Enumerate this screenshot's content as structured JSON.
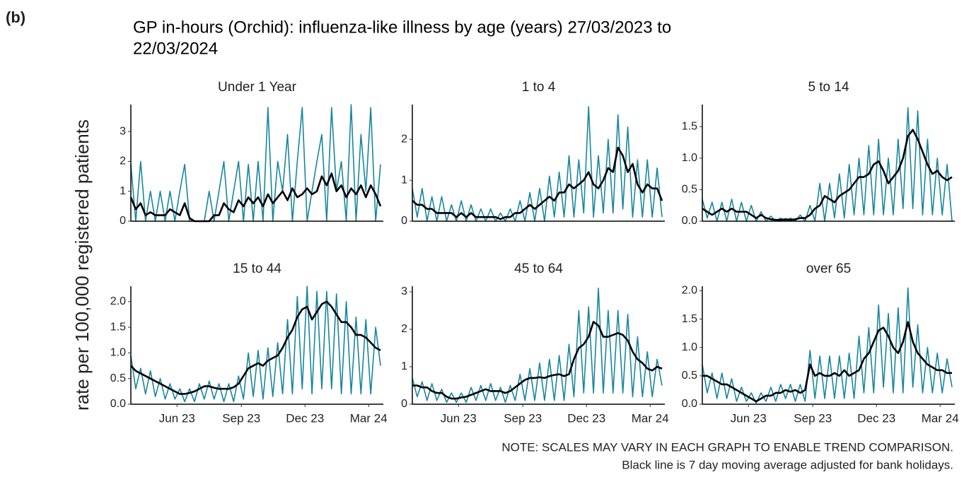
{
  "label": "(b)",
  "title": [
    "GP in-hours (Orchid): influenza-like illness by age (years) 27/03/2023 to",
    "22/03/2024"
  ],
  "y_label": "rate per 100,000 registered patients",
  "notes": [
    "NOTE: SCALES MAY VARY IN EACH GRAPH TO ENABLE TREND COMPARISON.",
    "Black line is 7 day moving average adjusted for bank holidays."
  ],
  "chart_data": [
    {
      "type": "line",
      "title": "Under 1 Year",
      "xlim": [
        0,
        361
      ],
      "ylim": [
        0,
        3.9
      ],
      "yticks": [
        0,
        1,
        2,
        3
      ],
      "x": [
        0,
        7,
        14,
        21,
        28,
        35,
        42,
        49,
        56,
        63,
        70,
        77,
        84,
        91,
        98,
        105,
        112,
        119,
        126,
        133,
        140,
        147,
        154,
        161,
        168,
        175,
        182,
        189,
        196,
        203,
        210,
        217,
        224,
        231,
        238,
        245,
        252,
        259,
        266,
        273,
        280,
        287,
        294,
        301,
        308,
        315,
        322,
        329,
        336,
        343,
        350,
        357
      ],
      "series": [
        {
          "color": "#17869e",
          "values": [
            1.9,
            0,
            2.0,
            0,
            1.0,
            0,
            1.0,
            0,
            1.0,
            0,
            1.0,
            1.9,
            0,
            0,
            0,
            0,
            1.0,
            0,
            1.0,
            2.0,
            0,
            1.0,
            2.0,
            0,
            1.9,
            0,
            2.0,
            0,
            3.8,
            0,
            2.0,
            1.0,
            2.9,
            0,
            2.0,
            3.8,
            0,
            1.0,
            2.0,
            2.9,
            0,
            3.8,
            1.0,
            2.0,
            0,
            3.9,
            0,
            2.9,
            1.0,
            3.8,
            0,
            1.9
          ]
        },
        {
          "color": "#000000",
          "values": [
            0.8,
            0.4,
            0.6,
            0.2,
            0.3,
            0.2,
            0.2,
            0.2,
            0.4,
            0.3,
            0.2,
            0.6,
            0.1,
            0,
            0,
            0,
            0,
            0.2,
            0.2,
            0.6,
            0.4,
            0.3,
            0.7,
            0.5,
            0.8,
            0.6,
            0.8,
            0.5,
            0.9,
            0.6,
            0.8,
            1.0,
            0.7,
            1.1,
            0.8,
            0.9,
            1.1,
            0.9,
            1.0,
            1.5,
            1.2,
            1.6,
            1.0,
            1.2,
            0.8,
            1.1,
            0.9,
            1.2,
            0.8,
            1.2,
            0.9,
            0.5
          ]
        }
      ]
    },
    {
      "type": "line",
      "title": "1 to 4",
      "xlim": [
        0,
        361
      ],
      "ylim": [
        0,
        2.85
      ],
      "yticks": [
        0,
        1,
        2
      ],
      "x": [
        0,
        7,
        14,
        21,
        28,
        35,
        42,
        49,
        56,
        63,
        70,
        77,
        84,
        91,
        98,
        105,
        112,
        119,
        126,
        133,
        140,
        147,
        154,
        161,
        168,
        175,
        182,
        189,
        196,
        203,
        210,
        217,
        224,
        231,
        238,
        245,
        252,
        259,
        266,
        273,
        280,
        287,
        294,
        301,
        308,
        315,
        322,
        329,
        336,
        343,
        350,
        357
      ],
      "series": [
        {
          "color": "#17869e",
          "values": [
            0.8,
            0.1,
            0.8,
            0,
            0.6,
            0,
            0.6,
            0,
            0.4,
            0,
            0.5,
            0,
            0.4,
            0,
            0.3,
            0,
            0.3,
            0,
            0.2,
            0,
            0.3,
            0,
            0.5,
            0,
            0.7,
            0,
            0.8,
            0,
            1.1,
            0.1,
            1.2,
            0.1,
            1.6,
            0.1,
            1.5,
            0.2,
            2.8,
            0.1,
            1.6,
            0.2,
            2.0,
            0.2,
            2.6,
            0.3,
            2.3,
            0.1,
            1.5,
            0.1,
            1.5,
            0.1,
            1.3,
            0.1
          ]
        },
        {
          "color": "#000000",
          "values": [
            0.5,
            0.4,
            0.4,
            0.3,
            0.3,
            0.2,
            0.2,
            0.2,
            0.2,
            0.1,
            0.2,
            0.1,
            0.2,
            0.1,
            0.1,
            0.1,
            0.1,
            0.1,
            0.05,
            0.1,
            0.1,
            0.2,
            0.2,
            0.3,
            0.4,
            0.3,
            0.4,
            0.5,
            0.6,
            0.5,
            0.7,
            0.7,
            0.9,
            0.8,
            0.9,
            1.0,
            1.2,
            0.9,
            0.8,
            1.0,
            1.3,
            1.2,
            1.8,
            1.6,
            1.2,
            1.4,
            0.9,
            0.7,
            0.9,
            0.8,
            0.8,
            0.5
          ]
        }
      ]
    },
    {
      "type": "line",
      "title": "5 to 14",
      "xlim": [
        0,
        361
      ],
      "ylim": [
        0,
        1.85
      ],
      "yticks": [
        {
          "value": 0,
          "label": "0.0"
        },
        0.5,
        {
          "value": 1,
          "label": "1.0"
        },
        1.5
      ],
      "x": [
        0,
        7,
        14,
        21,
        28,
        35,
        42,
        49,
        56,
        63,
        70,
        77,
        84,
        91,
        98,
        105,
        112,
        119,
        126,
        133,
        140,
        147,
        154,
        161,
        168,
        175,
        182,
        189,
        196,
        203,
        210,
        217,
        224,
        231,
        238,
        245,
        252,
        259,
        266,
        273,
        280,
        287,
        294,
        301,
        308,
        315,
        322,
        329,
        336,
        343,
        350,
        357
      ],
      "series": [
        {
          "color": "#17869e",
          "values": [
            0.35,
            0.05,
            0.3,
            0,
            0.3,
            0,
            0.35,
            0,
            0.3,
            0,
            0.25,
            0,
            0.15,
            0,
            0.08,
            0,
            0.05,
            0,
            0.05,
            0,
            0.1,
            0,
            0.25,
            0,
            0.6,
            0,
            0.6,
            0.05,
            0.75,
            0.05,
            0.9,
            0.1,
            1.0,
            0.1,
            1.2,
            0.1,
            1.3,
            0.1,
            1.0,
            0.1,
            1.3,
            0.2,
            1.8,
            0.2,
            1.75,
            0.1,
            1.3,
            0.1,
            1.0,
            0.1,
            0.9,
            0
          ]
        },
        {
          "color": "#000000",
          "values": [
            0.2,
            0.15,
            0.1,
            0.15,
            0.2,
            0.15,
            0.2,
            0.15,
            0.15,
            0.15,
            0.1,
            0.05,
            0.1,
            0.05,
            0.03,
            0.02,
            0.02,
            0.03,
            0.02,
            0.03,
            0.05,
            0.05,
            0.1,
            0.2,
            0.25,
            0.4,
            0.35,
            0.3,
            0.4,
            0.45,
            0.5,
            0.6,
            0.7,
            0.7,
            0.75,
            0.9,
            0.95,
            0.8,
            0.6,
            0.7,
            0.8,
            1.0,
            1.35,
            1.45,
            1.3,
            1.1,
            0.9,
            0.75,
            0.8,
            0.7,
            0.65,
            0.7
          ]
        }
      ]
    },
    {
      "type": "line",
      "title": "15 to 44",
      "xlim": [
        0,
        361
      ],
      "ylim": [
        0,
        2.3
      ],
      "yticks": [
        {
          "value": 0,
          "label": "0.0"
        },
        0.5,
        {
          "value": 1,
          "label": "1.0"
        },
        1.5,
        {
          "value": 2,
          "label": "2.0"
        }
      ],
      "xticks": [
        {
          "value": 66,
          "label": "Jun 23"
        },
        {
          "value": 158,
          "label": "Sep 23"
        },
        {
          "value": 249,
          "label": "Dec 23"
        },
        {
          "value": 340,
          "label": "Mar 24"
        }
      ],
      "x": [
        0,
        7,
        14,
        21,
        28,
        35,
        42,
        49,
        56,
        63,
        70,
        77,
        84,
        91,
        98,
        105,
        112,
        119,
        126,
        133,
        140,
        147,
        154,
        161,
        168,
        175,
        182,
        189,
        196,
        203,
        210,
        217,
        224,
        231,
        238,
        245,
        252,
        259,
        266,
        273,
        280,
        287,
        294,
        301,
        308,
        315,
        322,
        329,
        336,
        343,
        350,
        357
      ],
      "series": [
        {
          "color": "#17869e",
          "values": [
            0.95,
            0.3,
            0.7,
            0.2,
            0.65,
            0.15,
            0.5,
            0.1,
            0.4,
            0.1,
            0.3,
            0.05,
            0.3,
            0.05,
            0.4,
            0.1,
            0.45,
            0.1,
            0.4,
            0.05,
            0.4,
            0.05,
            0.55,
            0.1,
            1.0,
            0.15,
            1.05,
            0.1,
            1.1,
            0.15,
            1.2,
            0.2,
            1.65,
            0.2,
            2.1,
            0.3,
            2.3,
            0.2,
            2.2,
            0.3,
            2.2,
            0.3,
            2.15,
            0.2,
            2.0,
            0.2,
            1.7,
            0.2,
            1.65,
            0.2,
            1.5,
            0.75
          ]
        },
        {
          "color": "#000000",
          "values": [
            0.75,
            0.65,
            0.6,
            0.55,
            0.5,
            0.45,
            0.4,
            0.35,
            0.3,
            0.25,
            0.2,
            0.2,
            0.22,
            0.25,
            0.3,
            0.35,
            0.35,
            0.32,
            0.3,
            0.3,
            0.3,
            0.33,
            0.4,
            0.55,
            0.7,
            0.75,
            0.8,
            0.75,
            0.85,
            0.9,
            0.95,
            1.1,
            1.3,
            1.45,
            1.7,
            1.85,
            1.9,
            1.65,
            1.8,
            1.95,
            2.0,
            1.9,
            1.75,
            1.6,
            1.6,
            1.5,
            1.35,
            1.35,
            1.3,
            1.2,
            1.1,
            1.05
          ]
        }
      ]
    },
    {
      "type": "line",
      "title": "45 to 64",
      "xlim": [
        0,
        361
      ],
      "ylim": [
        0,
        3.15
      ],
      "yticks": [
        0,
        1,
        2,
        3
      ],
      "xticks": [
        {
          "value": 66,
          "label": "Jun 23"
        },
        {
          "value": 158,
          "label": "Sep 23"
        },
        {
          "value": 249,
          "label": "Dec 23"
        },
        {
          "value": 340,
          "label": "Mar 24"
        }
      ],
      "x": [
        0,
        7,
        14,
        21,
        28,
        35,
        42,
        49,
        56,
        63,
        70,
        77,
        84,
        91,
        98,
        105,
        112,
        119,
        126,
        133,
        140,
        147,
        154,
        161,
        168,
        175,
        182,
        189,
        196,
        203,
        210,
        217,
        224,
        231,
        238,
        245,
        252,
        259,
        266,
        273,
        280,
        287,
        294,
        301,
        308,
        315,
        322,
        329,
        336,
        343,
        350,
        357
      ],
      "series": [
        {
          "color": "#17869e",
          "values": [
            0.7,
            0.2,
            0.6,
            0.1,
            0.55,
            0.1,
            0.4,
            0.05,
            0.3,
            0.05,
            0.3,
            0.05,
            0.45,
            0.1,
            0.5,
            0.1,
            0.55,
            0.1,
            0.45,
            0.05,
            0.5,
            0.1,
            0.8,
            0.1,
            0.95,
            0.1,
            1.1,
            0.1,
            1.2,
            0.1,
            1.3,
            0.1,
            1.6,
            0.2,
            2.5,
            0.3,
            2.6,
            0.3,
            3.1,
            0.3,
            2.5,
            0.3,
            2.5,
            0.3,
            2.4,
            0.2,
            1.8,
            0.2,
            1.4,
            0.2,
            1.2,
            0.5
          ]
        },
        {
          "color": "#000000",
          "values": [
            0.5,
            0.5,
            0.45,
            0.45,
            0.35,
            0.3,
            0.3,
            0.2,
            0.15,
            0.15,
            0.18,
            0.2,
            0.25,
            0.3,
            0.35,
            0.4,
            0.35,
            0.35,
            0.35,
            0.3,
            0.35,
            0.45,
            0.55,
            0.65,
            0.7,
            0.7,
            0.72,
            0.7,
            0.75,
            0.78,
            0.8,
            0.75,
            0.8,
            1.2,
            1.5,
            1.6,
            1.8,
            2.2,
            2.1,
            1.8,
            1.8,
            1.85,
            1.9,
            1.85,
            1.7,
            1.4,
            1.2,
            1.1,
            0.95,
            0.9,
            1.0,
            0.95
          ]
        }
      ]
    },
    {
      "type": "line",
      "title": "over 65",
      "xlim": [
        0,
        361
      ],
      "ylim": [
        0,
        2.08
      ],
      "yticks": [
        {
          "value": 0,
          "label": "0.0"
        },
        0.5,
        {
          "value": 1,
          "label": "1.0"
        },
        1.5,
        {
          "value": 2,
          "label": "2.0"
        }
      ],
      "xticks": [
        {
          "value": 66,
          "label": "Jun 23"
        },
        {
          "value": 158,
          "label": "Sep 23"
        },
        {
          "value": 249,
          "label": "Dec 23"
        },
        {
          "value": 340,
          "label": "Mar 24"
        }
      ],
      "x": [
        0,
        7,
        14,
        21,
        28,
        35,
        42,
        49,
        56,
        63,
        70,
        77,
        84,
        91,
        98,
        105,
        112,
        119,
        126,
        133,
        140,
        147,
        154,
        161,
        168,
        175,
        182,
        189,
        196,
        203,
        210,
        217,
        224,
        231,
        238,
        245,
        252,
        259,
        266,
        273,
        280,
        287,
        294,
        301,
        308,
        315,
        322,
        329,
        336,
        343,
        350,
        357
      ],
      "series": [
        {
          "color": "#17869e",
          "values": [
            0.7,
            0.2,
            0.55,
            0.1,
            0.55,
            0.1,
            0.45,
            0.05,
            0.3,
            0.05,
            0.2,
            0.02,
            0.2,
            0.05,
            0.3,
            0.05,
            0.35,
            0.1,
            0.35,
            0.05,
            0.35,
            0.05,
            0.95,
            0.1,
            0.85,
            0.1,
            0.85,
            0.1,
            0.85,
            0.1,
            0.9,
            0.1,
            1.2,
            0.2,
            1.35,
            0.2,
            1.75,
            0.3,
            1.6,
            0.2,
            1.7,
            0.2,
            2.05,
            0.3,
            1.4,
            0.2,
            1.0,
            0.2,
            0.9,
            0.2,
            0.8,
            0.3
          ]
        },
        {
          "color": "#000000",
          "values": [
            0.5,
            0.5,
            0.45,
            0.4,
            0.35,
            0.35,
            0.3,
            0.25,
            0.2,
            0.15,
            0.1,
            0.05,
            0.1,
            0.15,
            0.15,
            0.2,
            0.2,
            0.25,
            0.22,
            0.25,
            0.2,
            0.25,
            0.7,
            0.5,
            0.55,
            0.5,
            0.5,
            0.55,
            0.5,
            0.6,
            0.5,
            0.55,
            0.6,
            0.8,
            0.9,
            1.1,
            1.3,
            1.35,
            1.2,
            1.0,
            0.9,
            1.1,
            1.45,
            1.1,
            0.9,
            0.8,
            0.7,
            0.65,
            0.6,
            0.6,
            0.55,
            0.55
          ]
        }
      ]
    }
  ]
}
